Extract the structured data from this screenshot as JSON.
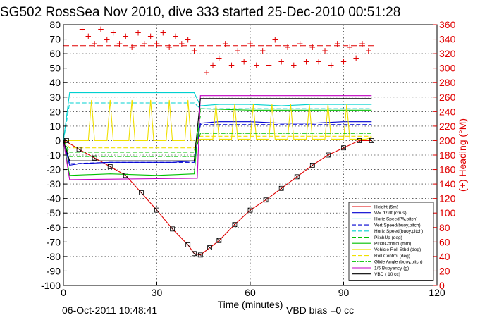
{
  "chart_data": {
    "type": "line",
    "title": "SG502 RossSea Nov 2010, dive 333 started 25-Dec-2010 00:51:28",
    "xlabel": "Time (minutes)",
    "ylabel": "",
    "ylabel_right": "(+) Heading (°M)",
    "xlim": [
      0,
      120
    ],
    "ylim": [
      -100,
      80
    ],
    "ylim_right": [
      0,
      360
    ],
    "x_ticks": [
      "0",
      "30",
      "60",
      "90",
      "120"
    ],
    "y_ticks": [
      "-100",
      "-90",
      "-80",
      "-70",
      "-60",
      "-50",
      "-40",
      "-30",
      "-20",
      "-10",
      "0",
      "10",
      "20",
      "30",
      "40",
      "50",
      "60",
      "70",
      "80"
    ],
    "y_ticks_right": [
      "0",
      "20",
      "40",
      "60",
      "80",
      "100",
      "120",
      "140",
      "160",
      "180",
      "200",
      "220",
      "240",
      "260",
      "280",
      "300",
      "320",
      "340",
      "360"
    ],
    "grid": true,
    "legend_position": "bottom-right",
    "footer_date": "06-Oct-2011 10:48:41",
    "footer_vbd": "VBD bias =0 cc",
    "series": [
      {
        "name": "Height (5m)",
        "color": "#e00000",
        "style": "solid",
        "x": [
          0,
          1,
          2,
          5,
          10,
          15,
          20,
          25,
          30,
          35,
          40,
          42,
          44,
          47,
          50,
          55,
          60,
          65,
          70,
          75,
          80,
          85,
          90,
          95,
          99
        ],
        "values": [
          0,
          -1,
          -2,
          -6,
          -12,
          -18,
          -24,
          -36,
          -48,
          -61,
          -72,
          -78,
          -79,
          -74,
          -69,
          -58,
          -48,
          -41,
          -33,
          -25,
          -17,
          -10,
          -5,
          0,
          0
        ]
      },
      {
        "name": "W= dz/dt (cm/s)",
        "color": "#0000d0",
        "style": "solid",
        "x": [
          0,
          2,
          5,
          15,
          25,
          35,
          42,
          44,
          50,
          60,
          70,
          80,
          90,
          99
        ],
        "values": [
          0,
          -17,
          -16,
          -15,
          -15,
          -15,
          -14,
          12,
          13,
          13,
          12,
          12,
          13,
          13
        ]
      },
      {
        "name": "Horiz Speed(W,pitch)",
        "color": "#00d0d0",
        "style": "solid",
        "x": [
          0,
          2,
          5,
          15,
          25,
          35,
          42,
          44,
          50,
          60,
          70,
          80,
          90,
          99
        ],
        "values": [
          0,
          33,
          33,
          33,
          33,
          33,
          33,
          24,
          25,
          25,
          24,
          25,
          25,
          25
        ]
      },
      {
        "name": "Vert Speed(buoy,pitch)",
        "color": "#0000d0",
        "style": "dashed",
        "x": [
          0,
          2,
          15,
          30,
          42,
          44,
          60,
          80,
          99
        ],
        "values": [
          0,
          -16,
          -15,
          -15,
          -15,
          11,
          11,
          11,
          11
        ]
      },
      {
        "name": "Horiz Speed(buoy,pitch)",
        "color": "#00d0d0",
        "style": "dashed",
        "x": [
          0,
          2,
          15,
          30,
          42,
          44,
          60,
          80,
          99
        ],
        "values": [
          0,
          26,
          26,
          26,
          26,
          22,
          22,
          22,
          22
        ]
      },
      {
        "name": "PitchUp (deg)",
        "color": "#00c000",
        "style": "dashed",
        "x": [
          0,
          2,
          15,
          30,
          42,
          44,
          60,
          80,
          99
        ],
        "values": [
          0,
          -8,
          -8,
          -8,
          -8,
          17,
          17,
          17,
          17
        ]
      },
      {
        "name": "PitchControl (mm)",
        "color": "#00c000",
        "style": "solid",
        "x": [
          0,
          2,
          15,
          30,
          42,
          44,
          60,
          80,
          99
        ],
        "values": [
          0,
          -24,
          -23,
          -24,
          -23,
          22,
          21,
          21,
          21
        ]
      },
      {
        "name": "Vehicle Roll Stbd (deg)",
        "color": "#f0e000",
        "style": "solid",
        "x": [
          0,
          3,
          8,
          9,
          10,
          14,
          15,
          16,
          21,
          22,
          23,
          27,
          28,
          29,
          33,
          34,
          35,
          39,
          40,
          41,
          44,
          48,
          49,
          50,
          54,
          55,
          56,
          60,
          61,
          62,
          66,
          67,
          68,
          72,
          73,
          74,
          78,
          79,
          80,
          84,
          85,
          86,
          90,
          91,
          92,
          97,
          99
        ],
        "values": [
          0,
          0,
          0,
          28,
          0,
          0,
          28,
          0,
          0,
          28,
          0,
          0,
          28,
          0,
          0,
          28,
          0,
          0,
          28,
          0,
          1,
          1,
          25,
          1,
          1,
          25,
          1,
          1,
          25,
          1,
          1,
          25,
          1,
          1,
          25,
          1,
          1,
          25,
          1,
          1,
          25,
          1,
          1,
          25,
          1,
          1,
          2
        ]
      },
      {
        "name": "Roll Control (deg)",
        "color": "#f0e000",
        "style": "dashed",
        "x": [
          0,
          2,
          42,
          44,
          99
        ],
        "values": [
          0,
          -5,
          -5,
          3,
          3
        ]
      },
      {
        "name": "Glide Angle (buoy,pitch)",
        "color": "#00c000",
        "style": "dashdot",
        "x": [
          0,
          2,
          42,
          44,
          99
        ],
        "values": [
          0,
          -11,
          -11,
          5,
          5
        ]
      },
      {
        "name": "1/5 Buoyancy (g)",
        "color": "#c000c0",
        "style": "solid",
        "x": [
          0,
          2,
          42,
          43,
          44,
          99
        ],
        "values": [
          0,
          -27,
          -26,
          -26,
          31,
          31
        ]
      },
      {
        "name": "VBD ( 10 cc)",
        "color": "#000000",
        "style": "solid",
        "x": [
          0,
          2,
          42,
          44,
          99
        ],
        "values": [
          0,
          -14,
          -14,
          29,
          29
        ]
      }
    ],
    "heading": {
      "name": "Heading",
      "color": "#e00000",
      "points_x": [
        6,
        8,
        10,
        12,
        14,
        16,
        18,
        20,
        22,
        24,
        26,
        28,
        30,
        32,
        34,
        36,
        38,
        40,
        42,
        46,
        48,
        50,
        52,
        54,
        56,
        58,
        60,
        62,
        64,
        66,
        68,
        70,
        72,
        74,
        76,
        78,
        80,
        82,
        84,
        86,
        88,
        90,
        92,
        94,
        96,
        98
      ],
      "points_y": [
        350,
        340,
        330,
        350,
        335,
        345,
        330,
        340,
        325,
        345,
        330,
        340,
        330,
        345,
        325,
        340,
        330,
        335,
        320,
        290,
        300,
        310,
        330,
        300,
        320,
        305,
        330,
        300,
        320,
        300,
        335,
        305,
        325,
        300,
        330,
        305,
        325,
        305,
        320,
        300,
        330,
        305,
        325,
        310,
        330,
        320
      ],
      "ref_value": 331
    },
    "markers": {
      "x": [
        1,
        5,
        10,
        15,
        20,
        25,
        30,
        35,
        40,
        42,
        44,
        47,
        50,
        55,
        60,
        65,
        70,
        75,
        80,
        85,
        90,
        95,
        99
      ],
      "values": [
        0,
        -6,
        -12,
        -18,
        -24,
        -36,
        -48,
        -61,
        -72,
        -78,
        -79,
        -74,
        -69,
        -58,
        -48,
        -41,
        -33,
        -25,
        -17,
        -10,
        -5,
        0,
        0
      ]
    }
  }
}
